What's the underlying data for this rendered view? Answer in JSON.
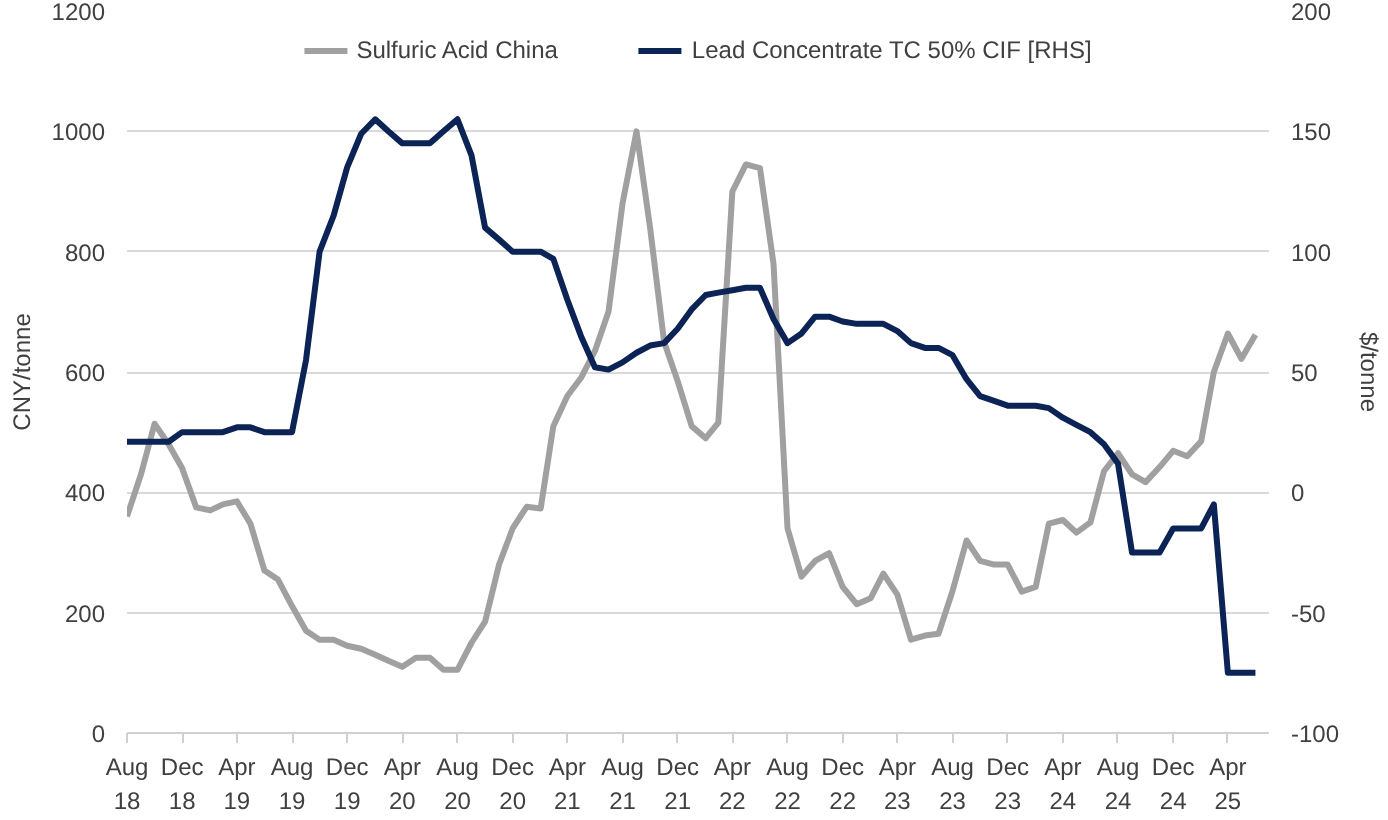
{
  "chart_data": {
    "type": "line",
    "ylabel": "CNY/tonne",
    "y2label": "$/tonne",
    "x": [
      "2018-08",
      "2018-09",
      "2018-10",
      "2018-11",
      "2018-12",
      "2019-01",
      "2019-02",
      "2019-03",
      "2019-04",
      "2019-05",
      "2019-06",
      "2019-07",
      "2019-08",
      "2019-09",
      "2019-10",
      "2019-11",
      "2019-12",
      "2020-01",
      "2020-02",
      "2020-03",
      "2020-04",
      "2020-05",
      "2020-06",
      "2020-07",
      "2020-08",
      "2020-09",
      "2020-10",
      "2020-11",
      "2020-12",
      "2021-01",
      "2021-02",
      "2021-03",
      "2021-04",
      "2021-05",
      "2021-06",
      "2021-07",
      "2021-08",
      "2021-09",
      "2021-10",
      "2021-11",
      "2021-12",
      "2022-01",
      "2022-02",
      "2022-03",
      "2022-04",
      "2022-05",
      "2022-06",
      "2022-07",
      "2022-08",
      "2022-09",
      "2022-10",
      "2022-11",
      "2022-12",
      "2023-01",
      "2023-02",
      "2023-03",
      "2023-04",
      "2023-05",
      "2023-06",
      "2023-07",
      "2023-08",
      "2023-09",
      "2023-10",
      "2023-11",
      "2023-12",
      "2024-01",
      "2024-02",
      "2024-03",
      "2024-04",
      "2024-05",
      "2024-06",
      "2024-07",
      "2024-08",
      "2024-09",
      "2024-10",
      "2024-11",
      "2024-12",
      "2025-01",
      "2025-02",
      "2025-03",
      "2025-04",
      "2025-05",
      "2025-06"
    ],
    "series": [
      {
        "name": "Sulfuric Acid China",
        "color": "#a0a0a0",
        "values": [
          360,
          430,
          514,
          480,
          440,
          375,
          370,
          380,
          385,
          348,
          270,
          255,
          211,
          170,
          155,
          155,
          145,
          140,
          130,
          120,
          110,
          125,
          125,
          105,
          105,
          150,
          185,
          280,
          340,
          376,
          373,
          510,
          560,
          590,
          635,
          700,
          880,
          1000,
          840,
          650,
          585,
          510,
          490,
          516,
          900,
          945,
          939,
          780,
          340,
          260,
          286,
          299,
          243,
          214,
          224,
          265,
          230,
          155,
          162,
          165,
          236,
          320,
          286,
          280,
          280,
          235,
          243,
          348,
          354,
          333,
          350,
          435,
          465,
          430,
          417,
          442,
          469,
          460,
          485,
          600,
          664,
          622,
          662
        ]
      },
      {
        "name": "Lead Concentrate TC 50% CIF [RHS]",
        "color": "#0c2356",
        "axis": "y2",
        "values": [
          21,
          21,
          21,
          21,
          25,
          25,
          25,
          25,
          27,
          27,
          25,
          25,
          25,
          55,
          100,
          115,
          135,
          149,
          155,
          150,
          145,
          145,
          145,
          150,
          155,
          140,
          110,
          105,
          100,
          100,
          100,
          97,
          80,
          65,
          52,
          51,
          54,
          58,
          61,
          62,
          68,
          76,
          82,
          83,
          84,
          85,
          85,
          72,
          62,
          66,
          73,
          73,
          71,
          70,
          70,
          70,
          67,
          62,
          60,
          60,
          57,
          47,
          40,
          38,
          36,
          36,
          36,
          35,
          31,
          28,
          25,
          20,
          12,
          -25,
          -25,
          -25,
          -15,
          -15,
          -15,
          -5,
          -75,
          -75,
          -75
        ]
      }
    ],
    "xlim": [
      "2018-08",
      "2025-07"
    ],
    "xticks": [
      {
        "value": "2018-08",
        "label": "Aug\n18"
      },
      {
        "value": "2018-12",
        "label": "Dec\n18"
      },
      {
        "value": "2019-04",
        "label": "Apr\n19"
      },
      {
        "value": "2019-08",
        "label": "Aug\n19"
      },
      {
        "value": "2019-12",
        "label": "Dec\n19"
      },
      {
        "value": "2020-04",
        "label": "Apr\n20"
      },
      {
        "value": "2020-08",
        "label": "Aug\n20"
      },
      {
        "value": "2020-12",
        "label": "Dec\n20"
      },
      {
        "value": "2021-04",
        "label": "Apr\n21"
      },
      {
        "value": "2021-08",
        "label": "Aug\n21"
      },
      {
        "value": "2021-12",
        "label": "Dec\n21"
      },
      {
        "value": "2022-04",
        "label": "Apr\n22"
      },
      {
        "value": "2022-08",
        "label": "Aug\n22"
      },
      {
        "value": "2022-12",
        "label": "Dec\n22"
      },
      {
        "value": "2023-04",
        "label": "Apr\n23"
      },
      {
        "value": "2023-08",
        "label": "Aug\n23"
      },
      {
        "value": "2023-12",
        "label": "Dec\n23"
      },
      {
        "value": "2024-04",
        "label": "Apr\n24"
      },
      {
        "value": "2024-08",
        "label": "Aug\n24"
      },
      {
        "value": "2024-12",
        "label": "Dec\n24"
      },
      {
        "value": "2025-04",
        "label": "Apr\n25"
      }
    ],
    "ylim": [
      0,
      1200
    ],
    "yticks": [
      0,
      200,
      400,
      600,
      800,
      1000,
      1200
    ],
    "y2lim": [
      -100,
      200
    ],
    "y2ticks": [
      -100,
      -50,
      0,
      50,
      100,
      150,
      200
    ],
    "grid": "y",
    "legend": "top",
    "line_style": "solid"
  }
}
